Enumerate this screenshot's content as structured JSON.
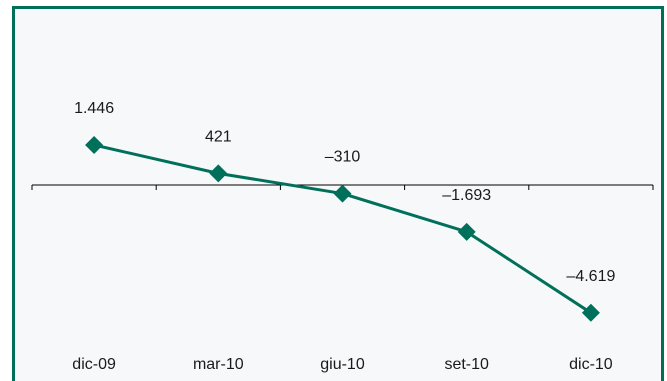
{
  "chart_data": {
    "type": "line",
    "categories": [
      "dic-09",
      "mar-10",
      "giu-10",
      "set-10",
      "dic-10"
    ],
    "series": [
      {
        "values": [
          1446,
          421,
          -310,
          -1693,
          -4619
        ]
      }
    ],
    "data_labels": [
      "1.446",
      "421",
      "–310",
      "–1.693",
      "–4.619"
    ],
    "title": "",
    "xlabel": "",
    "ylabel": "",
    "ylim": [
      -5600,
      3500
    ],
    "grid": false,
    "legend": "none",
    "marker": "diamond",
    "colors": {
      "line": "#00705a",
      "frame": "#00705a",
      "background": "#f7f8f9"
    }
  }
}
